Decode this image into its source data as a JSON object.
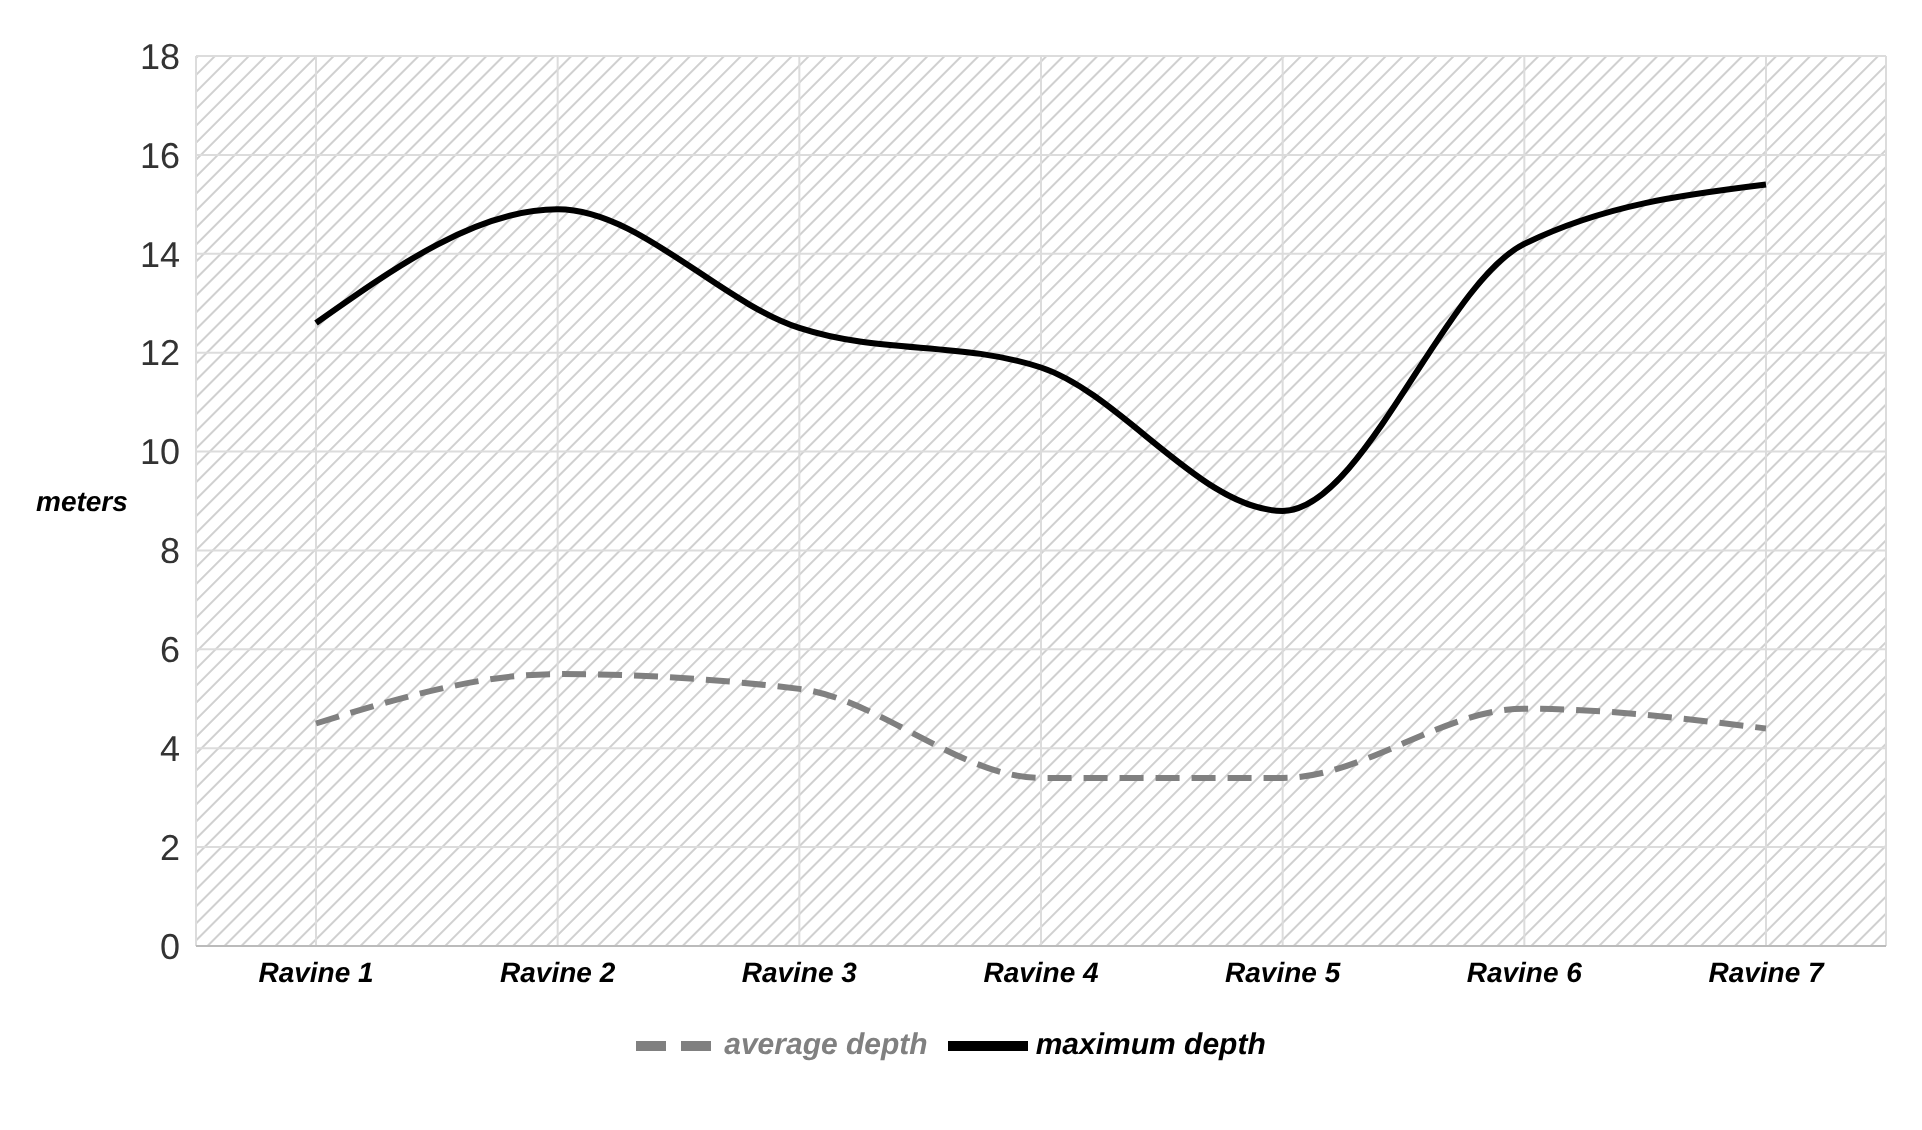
{
  "chart_data": {
    "type": "line",
    "ylabel": "meters",
    "categories": [
      "Ravine 1",
      "Ravine 2",
      "Ravine 3",
      "Ravine 4",
      "Ravine 5",
      "Ravine 6",
      "Ravine 7"
    ],
    "series": [
      {
        "name": "average depth",
        "color": "#808080",
        "line_style": "dashed",
        "values": [
          4.5,
          5.5,
          5.2,
          3.4,
          3.4,
          4.8,
          4.4
        ]
      },
      {
        "name": "maximum depth",
        "color": "#000000",
        "line_style": "solid",
        "values": [
          12.6,
          14.9,
          12.5,
          11.7,
          8.8,
          14.2,
          15.4
        ]
      }
    ],
    "ylim": [
      0,
      18
    ],
    "yticks": [
      0,
      2,
      4,
      6,
      8,
      10,
      12,
      14,
      16,
      18
    ],
    "grid": true,
    "legend": "bottom",
    "marker": "none"
  }
}
